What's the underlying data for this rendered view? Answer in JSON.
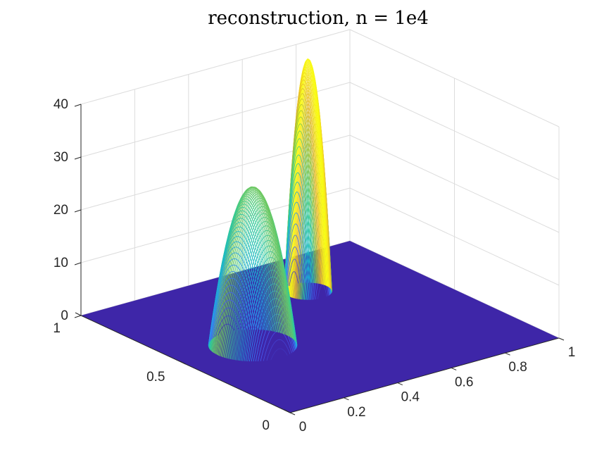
{
  "chart_data": {
    "type": "surface3d",
    "title": "reconstruction, n = 1e4",
    "xlabel": "",
    "ylabel": "",
    "zlabel": "",
    "xlim": [
      0,
      1
    ],
    "ylim": [
      0,
      1
    ],
    "zlim": [
      0,
      40
    ],
    "x_ticks": [
      "0",
      "0.2",
      "0.4",
      "0.6",
      "0.8",
      "1"
    ],
    "y_ticks": [
      "0",
      "0.5",
      "1"
    ],
    "z_ticks": [
      "0",
      "10",
      "20",
      "30",
      "40"
    ],
    "grid": true,
    "colormap": "parula",
    "floor_color": "#3e26a8",
    "peaks": [
      {
        "cx": 0.25,
        "cy": 0.5,
        "radius": 0.13,
        "height": 30
      },
      {
        "cx": 0.65,
        "cy": 0.75,
        "radius": 0.07,
        "height": 44
      }
    ]
  }
}
